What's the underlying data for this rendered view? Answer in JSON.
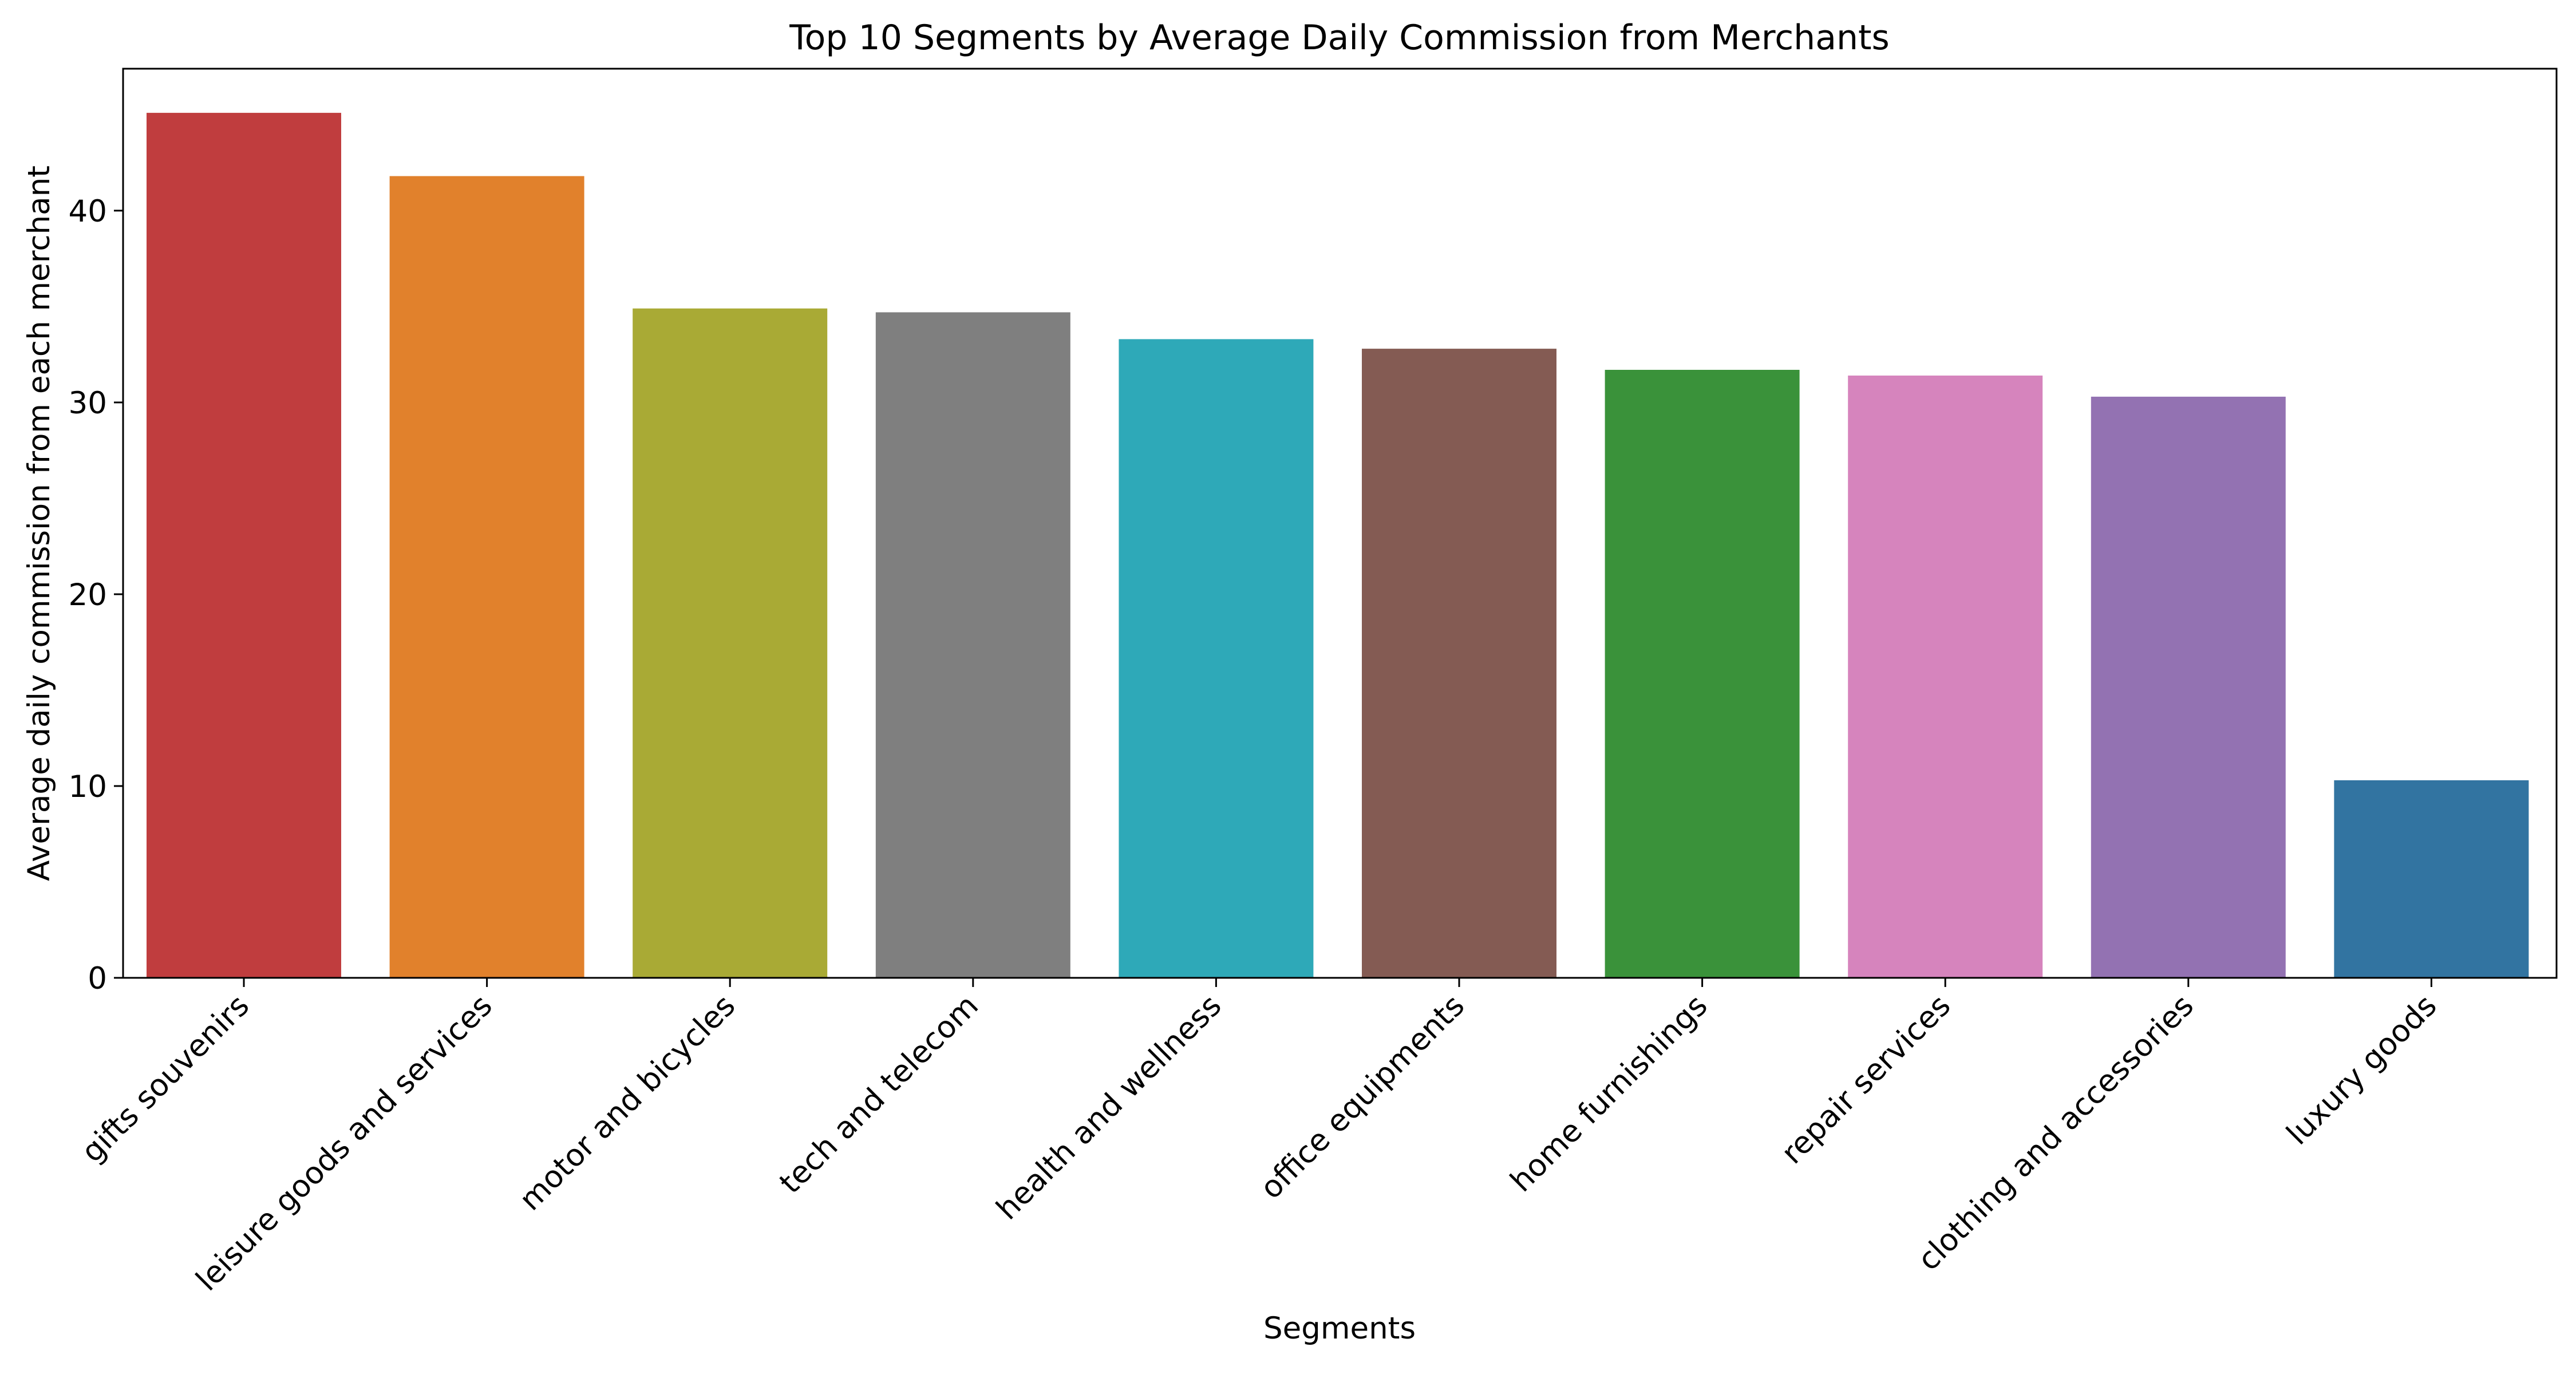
{
  "chart_data": {
    "type": "bar",
    "title": "Top 10 Segments by Average Daily Commission from Merchants",
    "xlabel": "Segments",
    "ylabel": "Average daily commission from each merchant",
    "categories": [
      "gifts souvenirs",
      "leisure goods and services",
      "motor and bicycles",
      "tech and telecom",
      "health and wellness",
      "office equipments",
      "home furnishings",
      "repair services",
      "clothing and accessories",
      "luxury goods"
    ],
    "values": [
      45.1,
      41.8,
      34.9,
      34.7,
      33.3,
      32.8,
      31.7,
      31.4,
      30.3,
      10.3
    ],
    "colors": [
      "#c03d3e",
      "#e1812c",
      "#a9aa35",
      "#7f7f7f",
      "#2ea9b8",
      "#845b53",
      "#3a923a",
      "#d684bd",
      "#9372b2",
      "#3274a1"
    ],
    "yticks": [
      0,
      10,
      20,
      30,
      40
    ],
    "ylim": [
      0,
      47.4
    ],
    "grid": false,
    "legend": "none"
  }
}
